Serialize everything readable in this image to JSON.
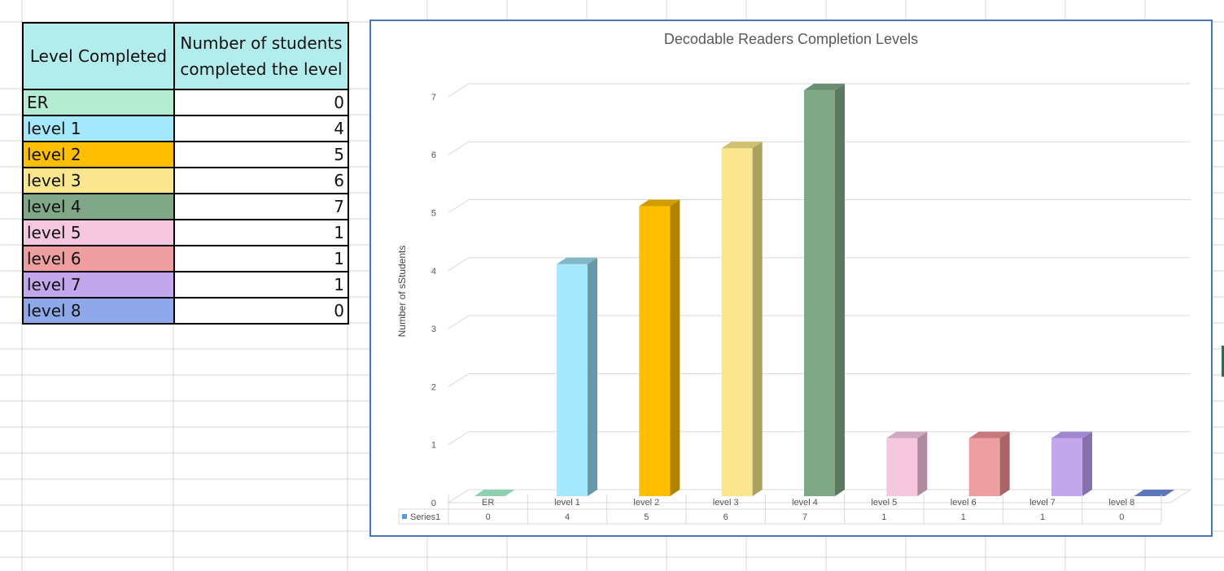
{
  "table": {
    "headers": [
      "Level Completed",
      "Number of students completed the level"
    ],
    "rows": [
      {
        "level": "ER",
        "count": "0",
        "color": "#b3ecd3"
      },
      {
        "level": "level 1",
        "count": "4",
        "color": "#a6e8fb"
      },
      {
        "level": "level 2",
        "count": "5",
        "color": "#ffbf00"
      },
      {
        "level": "level 3",
        "count": "6",
        "color": "#fbe690"
      },
      {
        "level": "level 4",
        "count": "7",
        "color": "#80a888"
      },
      {
        "level": "level 5",
        "count": "1",
        "color": "#f5c8e0"
      },
      {
        "level": "level 6",
        "count": "1",
        "color": "#ee9da0"
      },
      {
        "level": "level 7",
        "count": "1",
        "color": "#c2a7ec"
      },
      {
        "level": "level 8",
        "count": "0",
        "color": "#8ea8ea"
      }
    ]
  },
  "chart_data": {
    "type": "bar",
    "title": "Decodable Readers Completion Levels",
    "xlabel": "",
    "ylabel": "Number of sStudents",
    "ylim": [
      0,
      7
    ],
    "yticks": [
      0,
      1,
      2,
      3,
      4,
      5,
      6,
      7
    ],
    "categories": [
      "ER",
      "level 1",
      "level 2",
      "level 3",
      "level 4",
      "level 5",
      "level 6",
      "level 7",
      "level 8"
    ],
    "series": [
      {
        "name": "Series1",
        "values": [
          0,
          4,
          5,
          6,
          7,
          1,
          1,
          1,
          0
        ]
      }
    ],
    "bar_colors": [
      "#7fc4a6",
      "#a6e8fb",
      "#ffbf00",
      "#fbe690",
      "#80a888",
      "#f5c8e0",
      "#ee9da0",
      "#c2a7ec",
      "#6f88c6"
    ],
    "side_colors": [
      "#5b9a80",
      "#6699aa",
      "#b08400",
      "#aaa060",
      "#5a7a60",
      "#b08aa0",
      "#a86468",
      "#8670b0",
      "#4e67a6"
    ],
    "top_colors": [
      "#8fd0b2",
      "#80b8c8",
      "#d09c00",
      "#d0c070",
      "#6a8e72",
      "#d0a8c0",
      "#c8787c",
      "#a088d0",
      "#5d78b8"
    ],
    "legend_marker_color": "#5b9bd5",
    "grid": true,
    "data_table": true,
    "border_color": "#4a74b8"
  }
}
